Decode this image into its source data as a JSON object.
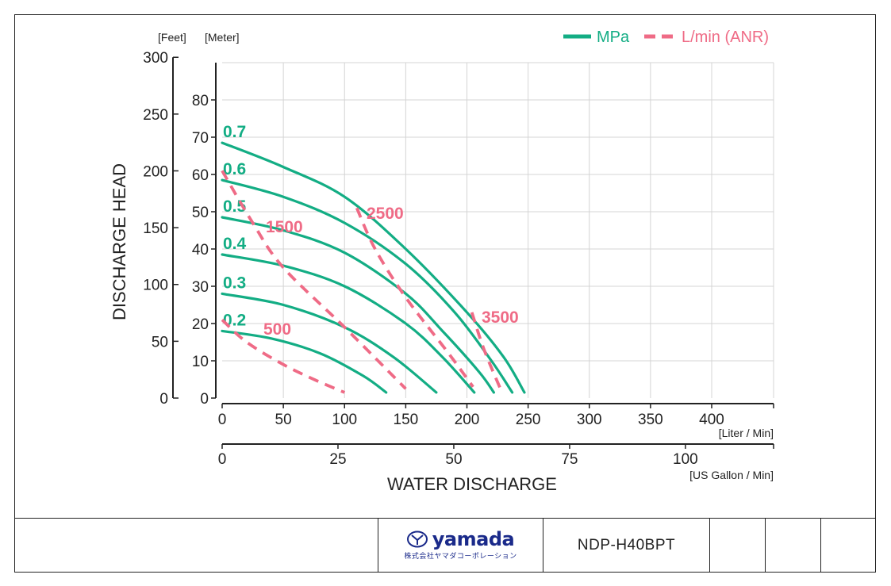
{
  "chart_data": {
    "type": "line",
    "legend": {
      "placement": "top-right",
      "entries": [
        {
          "label": "MPa",
          "style": "solid",
          "color": "#13ad84"
        },
        {
          "label": "L/min (ANR)",
          "style": "dashed",
          "color": "#ef6b86"
        }
      ]
    },
    "axis_units": {
      "feet": "[Feet]",
      "meter": "[Meter]",
      "liter": "[Liter / Min]",
      "gallon": "[US Gallon / Min]"
    },
    "ylabel": "DISCHARGE HEAD",
    "xlabel": "WATER DISCHARGE",
    "y_feet_ticks": [
      0,
      50,
      100,
      150,
      200,
      250,
      300
    ],
    "y_meter_ticks": [
      0,
      10,
      20,
      30,
      40,
      50,
      60,
      70,
      80
    ],
    "x_liter_ticks": [
      0,
      50,
      100,
      150,
      200,
      250,
      300,
      350,
      400
    ],
    "x_gallon_ticks": [
      0,
      25,
      50,
      75,
      100
    ],
    "xlim": [
      0,
      450
    ],
    "ylim_meter": [
      0,
      92
    ],
    "grid": true,
    "pressure_series": [
      {
        "name": "0.7",
        "x": [
          0,
          50,
          100,
          150,
          200,
          230,
          247
        ],
        "y": [
          68.5,
          62,
          54,
          40,
          23,
          11,
          1.5
        ]
      },
      {
        "name": "0.6",
        "x": [
          0,
          50,
          100,
          150,
          190,
          220,
          237
        ],
        "y": [
          58.5,
          54,
          47,
          36,
          23,
          10,
          1.5
        ]
      },
      {
        "name": "0.5",
        "x": [
          0,
          50,
          100,
          150,
          180,
          210,
          222
        ],
        "y": [
          48.5,
          45,
          39,
          28,
          18,
          7,
          1.5
        ]
      },
      {
        "name": "0.4",
        "x": [
          0,
          50,
          100,
          150,
          180,
          206
        ],
        "y": [
          38.5,
          35.5,
          30,
          20,
          11,
          1.5
        ]
      },
      {
        "name": "0.3",
        "x": [
          0,
          50,
          100,
          140,
          175
        ],
        "y": [
          28,
          25,
          19,
          11,
          1.5
        ]
      },
      {
        "name": "0.2",
        "x": [
          0,
          40,
          80,
          115,
          134
        ],
        "y": [
          18,
          16,
          12,
          6,
          1.5
        ]
      }
    ],
    "air_series": [
      {
        "name": "500",
        "x": [
          0,
          20,
          50,
          75,
          100
        ],
        "y": [
          21,
          15,
          9,
          5,
          1.5
        ]
      },
      {
        "name": "1500",
        "x": [
          0,
          25,
          50,
          100,
          150
        ],
        "y": [
          61,
          47,
          35,
          19,
          2.5
        ]
      },
      {
        "name": "2500",
        "x": [
          110,
          125,
          150,
          185,
          205
        ],
        "y": [
          51,
          40,
          27,
          12,
          3
        ]
      },
      {
        "name": "3500",
        "x": [
          204,
          214,
          228
        ],
        "y": [
          23,
          13,
          2
        ]
      }
    ]
  },
  "footer": {
    "logo_text": "yamada",
    "logo_subtext": "株式会社ヤマダコーポレーション",
    "model": "NDP-H40BPT"
  }
}
